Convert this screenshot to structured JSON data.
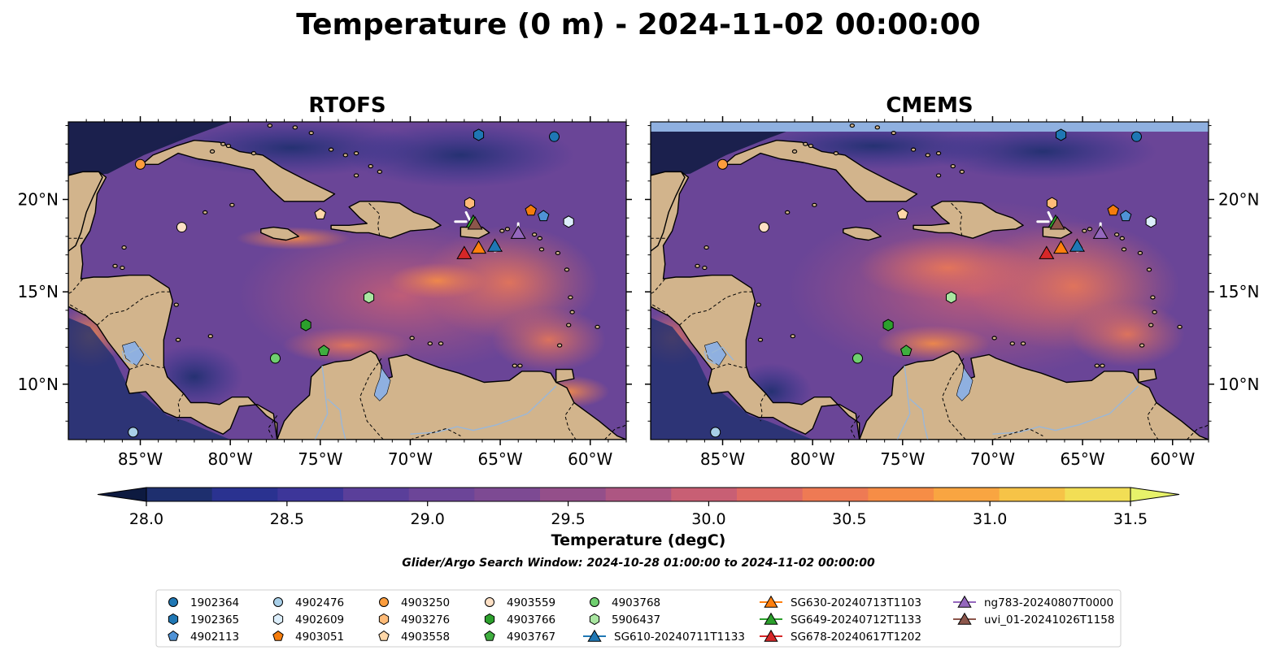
{
  "figure": {
    "title": "Temperature (0 m) - 2024-11-02 00:00:00",
    "panels": [
      {
        "id": "rtofs",
        "title": "RTOFS"
      },
      {
        "id": "cmems",
        "title": "CMEMS"
      }
    ],
    "lon_ticks": [
      "85°W",
      "80°W",
      "75°W",
      "70°W",
      "65°W",
      "60°W"
    ],
    "lat_ticks": [
      "20°N",
      "15°N",
      "10°N"
    ],
    "colorbar": {
      "label": "Temperature (degC)",
      "tick_labels": [
        "28.0",
        "28.5",
        "29.0",
        "29.5",
        "30.0",
        "30.5",
        "31.0",
        "31.5"
      ],
      "min": 28.0,
      "max": 31.5,
      "level_step": 0.25,
      "extend": "both",
      "colors": [
        "#0d1a40",
        "#1e2f6e",
        "#2a3290",
        "#3d3699",
        "#5a3f9a",
        "#6c4598",
        "#7d4a93",
        "#944f8a",
        "#ad5682",
        "#c85f74",
        "#de6a64",
        "#ee7a54",
        "#f68d46",
        "#f9a541",
        "#f6c347",
        "#f2de55",
        "#e7f26a"
      ]
    },
    "search_window": "Glider/Argo Search Window: 2024-10-28 01:00:00 to 2024-11-02 00:00:00",
    "legend": {
      "columns": [
        [
          {
            "label": "1902364",
            "marker": "circle",
            "color": "#1f77b4"
          },
          {
            "label": "1902365",
            "marker": "hexagon",
            "color": "#1f77b4"
          },
          {
            "label": "4902113",
            "marker": "pentagon",
            "color": "#4f92d6"
          }
        ],
        [
          {
            "label": "4902476",
            "marker": "circle",
            "color": "#a8cfe8"
          },
          {
            "label": "4902609",
            "marker": "hexagon",
            "color": "#dceefb"
          },
          {
            "label": "4903051",
            "marker": "pentagon",
            "color": "#f57c0c"
          }
        ],
        [
          {
            "label": "4903250",
            "marker": "circle",
            "color": "#fd9d3d"
          },
          {
            "label": "4903276",
            "marker": "hexagon",
            "color": "#ffbb78"
          },
          {
            "label": "4903558",
            "marker": "pentagon",
            "color": "#ffd7a8"
          }
        ],
        [
          {
            "label": "4903559",
            "marker": "circle",
            "color": "#fde0c5"
          },
          {
            "label": "4903766",
            "marker": "hexagon",
            "color": "#2ca02c"
          },
          {
            "label": "4903767",
            "marker": "pentagon",
            "color": "#3fae3f"
          }
        ],
        [
          {
            "label": "4903768",
            "marker": "circle",
            "color": "#6fcf6f"
          },
          {
            "label": "5906437",
            "marker": "hexagon",
            "color": "#a9e6a1"
          },
          {
            "label": "SG610-20240711T1133",
            "marker": "triangle",
            "color": "#1f77b4"
          }
        ],
        [
          {
            "label": "SG630-20240713T1103",
            "marker": "triangle",
            "color": "#ff7f0e"
          },
          {
            "label": "SG649-20240712T1133",
            "marker": "triangle",
            "color": "#2ca02c"
          },
          {
            "label": "SG678-20240617T1202",
            "marker": "triangle",
            "color": "#d62728"
          }
        ],
        [
          {
            "label": "ng783-20240807T0000",
            "marker": "triangle",
            "color": "#9467bd"
          },
          {
            "label": "uvi_01-20241026T1158",
            "marker": "triangle",
            "color": "#8c564b"
          }
        ]
      ]
    },
    "floats": [
      {
        "id": "1902364",
        "lon": -62.0,
        "lat": 23.4
      },
      {
        "id": "1902365",
        "lon": -66.2,
        "lat": 23.5
      },
      {
        "id": "4902113",
        "lon": -62.6,
        "lat": 19.1
      },
      {
        "id": "4902476",
        "lon": -85.4,
        "lat": 7.4
      },
      {
        "id": "4902609",
        "lon": -61.2,
        "lat": 18.8
      },
      {
        "id": "4903051",
        "lon": -63.3,
        "lat": 19.4
      },
      {
        "id": "4903250",
        "lon": -85.0,
        "lat": 21.9
      },
      {
        "id": "4903276",
        "lon": -66.7,
        "lat": 19.8
      },
      {
        "id": "4903558",
        "lon": -75.0,
        "lat": 19.2
      },
      {
        "id": "4903559",
        "lon": -82.7,
        "lat": 18.5
      },
      {
        "id": "4903766",
        "lon": -75.8,
        "lat": 13.2
      },
      {
        "id": "4903767",
        "lon": -74.8,
        "lat": 11.8
      },
      {
        "id": "4903768",
        "lon": -77.5,
        "lat": 11.4
      },
      {
        "id": "5906437",
        "lon": -72.3,
        "lat": 14.7
      }
    ],
    "gliders": [
      {
        "id": "SG610-20240711T1133",
        "lon": -65.3,
        "lat": 17.5
      },
      {
        "id": "SG630-20240713T1103",
        "lon": -66.2,
        "lat": 17.4
      },
      {
        "id": "SG649-20240712T1133",
        "lon": -66.5,
        "lat": 18.8
      },
      {
        "id": "SG678-20240617T1202",
        "lon": -67.0,
        "lat": 17.1
      },
      {
        "id": "ng783-20240807T0000",
        "lon": -64.0,
        "lat": 18.2
      },
      {
        "id": "uvi_01-20241026T1158",
        "lon": -66.4,
        "lat": 18.7
      }
    ]
  }
}
